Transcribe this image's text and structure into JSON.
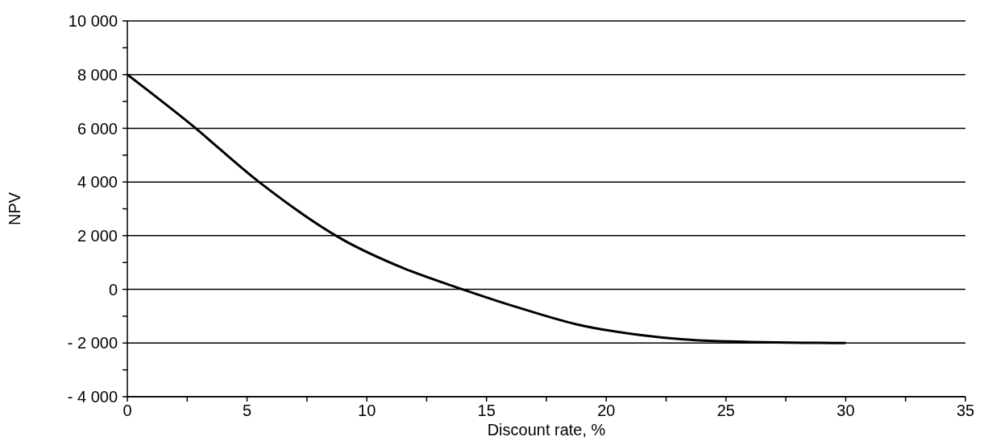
{
  "chart_data": {
    "type": "line",
    "xlabel": "Discount rate, %",
    "ylabel": "NPV",
    "x": [
      0,
      2.65,
      5.5,
      9,
      11.5,
      14,
      16.4,
      18.75,
      21.4,
      24.7,
      30
    ],
    "series": [
      {
        "color": "#000000",
        "values": [
          8000,
          6150,
          4000,
          1850,
          800,
          0,
          -700,
          -1300,
          -1700,
          -1930,
          -2000
        ]
      }
    ],
    "xlim": [
      0,
      35
    ],
    "xticks": [
      0,
      {
        "value": 2.5,
        "label": null
      },
      5,
      {
        "value": 7.5,
        "label": null
      },
      10,
      {
        "value": 12.5,
        "label": null
      },
      15,
      {
        "value": 17.5,
        "label": null
      },
      20,
      {
        "value": 22.5,
        "label": null
      },
      25,
      {
        "value": 27.5,
        "label": null
      },
      30,
      {
        "value": 32.5,
        "label": null
      },
      35
    ],
    "ylim": [
      -4000,
      10000
    ],
    "yticks": [
      {
        "value": -4000,
        "label": "- 4 000"
      },
      {
        "value": -3000,
        "label": null
      },
      {
        "value": -2000,
        "label": "- 2 000"
      },
      {
        "value": -1000,
        "label": null
      },
      0,
      {
        "value": 1000,
        "label": null
      },
      {
        "value": 2000,
        "label": "2 000"
      },
      {
        "value": 3000,
        "label": null
      },
      {
        "value": 4000,
        "label": "4 000"
      },
      {
        "value": 5000,
        "label": null
      },
      {
        "value": 6000,
        "label": "6 000"
      },
      {
        "value": 7000,
        "label": null
      },
      {
        "value": 8000,
        "label": "8 000"
      },
      {
        "value": 9000,
        "label": null
      },
      {
        "value": 10000,
        "label": "10 000"
      }
    ],
    "grid": "y",
    "marker": "none",
    "line_style": "solid"
  }
}
